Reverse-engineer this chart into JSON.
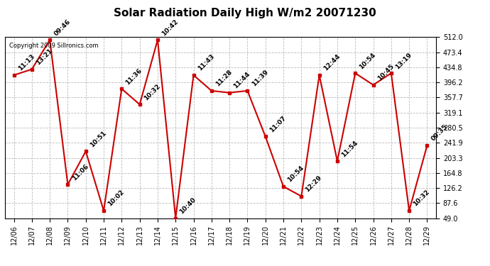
{
  "title": "Solar Radiation Daily High W/m2 20071230",
  "copyright": "Copyright 2009 Sillronics.com",
  "x_labels": [
    "12/06",
    "12/07",
    "12/08",
    "12/09",
    "12/10",
    "12/11",
    "12/12",
    "12/13",
    "12/14",
    "12/15",
    "12/16",
    "12/17",
    "12/18",
    "12/19",
    "12/20",
    "12/21",
    "12/22",
    "12/23",
    "12/24",
    "12/25",
    "12/26",
    "12/27",
    "12/28",
    "12/29"
  ],
  "y_values": [
    415,
    430,
    505,
    135,
    220,
    68,
    380,
    340,
    505,
    49,
    415,
    375,
    370,
    375,
    258,
    130,
    105,
    415,
    195,
    420,
    390,
    420,
    68,
    235
  ],
  "point_labels": [
    "11:13",
    "13:21",
    "09:46",
    "11:06",
    "10:51",
    "10:02",
    "11:36",
    "10:32",
    "10:42",
    "10:40",
    "11:43",
    "11:28",
    "11:44",
    "11:39",
    "11:07",
    "10:54",
    "12:29",
    "12:44",
    "11:54",
    "10:54",
    "10:45",
    "13:19",
    "10:32",
    "09:35"
  ],
  "line_color": "#cc0000",
  "marker_color": "#cc0000",
  "marker_size": 3,
  "line_width": 1.5,
  "grid_color": "#bbbbbb",
  "background_color": "#ffffff",
  "plot_bg_color": "#ffffff",
  "yticks": [
    49.0,
    87.6,
    126.2,
    164.8,
    203.3,
    241.9,
    280.5,
    319.1,
    357.7,
    396.2,
    434.8,
    473.4,
    512.0
  ],
  "ylim": [
    49.0,
    512.0
  ],
  "title_fontsize": 11,
  "label_fontsize": 6.5,
  "tick_fontsize": 7,
  "copyright_fontsize": 6
}
